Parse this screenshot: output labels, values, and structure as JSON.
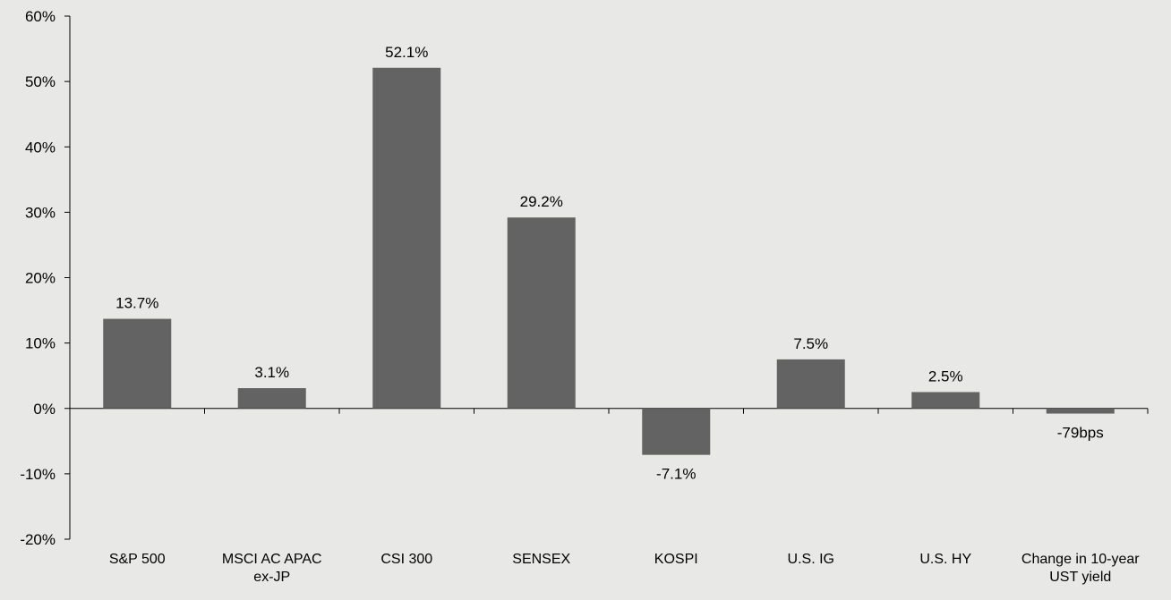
{
  "chart_data": {
    "type": "bar",
    "title": "",
    "xlabel": "",
    "ylabel": "",
    "ylim": [
      -20,
      60
    ],
    "yticks": [
      60,
      50,
      40,
      30,
      20,
      10,
      0,
      -10,
      -20
    ],
    "ytick_labels": [
      "60%",
      "50%",
      "40%",
      "30%",
      "20%",
      "10%",
      "0%",
      "-10%",
      "-20%"
    ],
    "grid": false,
    "legend": "none",
    "bar_color": "#636363",
    "categories": [
      [
        "S&P 500"
      ],
      [
        "MSCI AC APAC",
        "ex-JP"
      ],
      [
        "CSI 300"
      ],
      [
        "SENSEX"
      ],
      [
        "KOSPI"
      ],
      [
        "U.S. IG"
      ],
      [
        "U.S. HY"
      ],
      [
        "Change in 10-year",
        "UST yield"
      ]
    ],
    "values": [
      13.7,
      3.1,
      52.1,
      29.2,
      -7.1,
      7.5,
      2.5,
      -0.79
    ],
    "data_labels": [
      "13.7%",
      "3.1%",
      "52.1%",
      "29.2%",
      "-7.1%",
      "7.5%",
      "2.5%",
      "-79bps"
    ]
  }
}
